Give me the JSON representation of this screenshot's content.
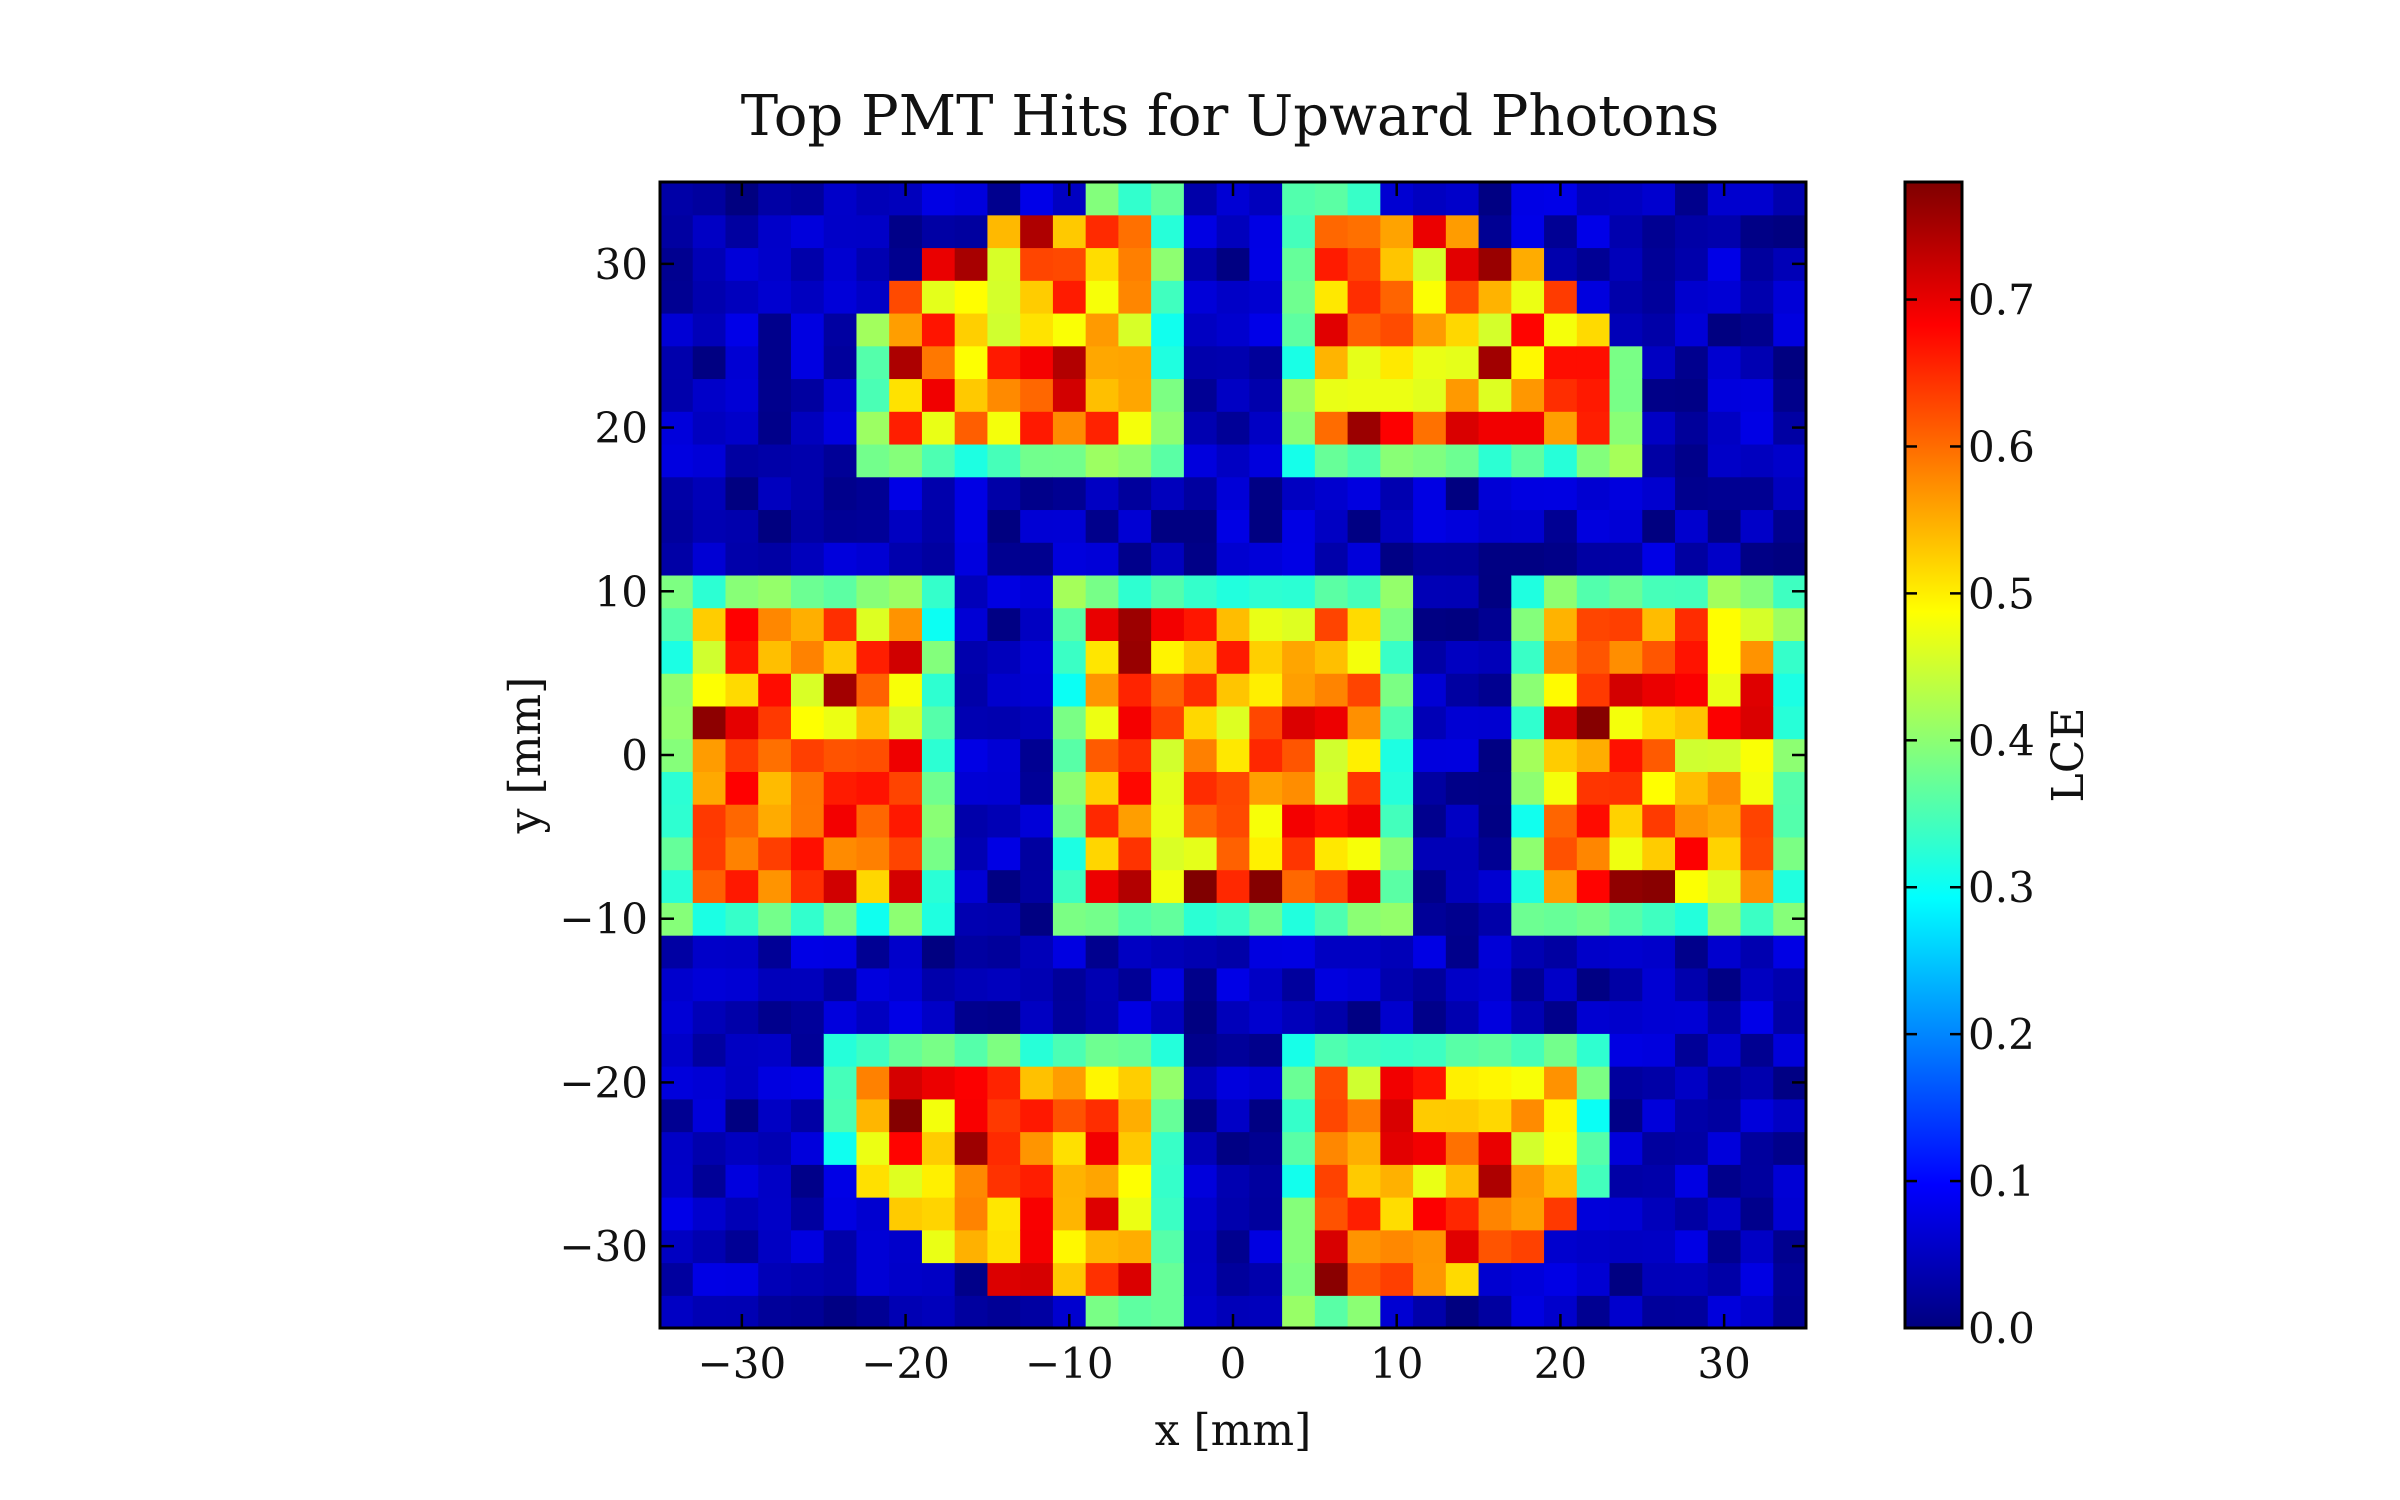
{
  "chart_data": {
    "type": "heatmap",
    "title": "Top PMT Hits for Upward Photons",
    "xlabel": "x [mm]",
    "ylabel": "y [mm]",
    "xlim": [
      -35,
      35
    ],
    "ylim": [
      -35,
      35
    ],
    "xticks": [
      -30,
      -20,
      -10,
      0,
      10,
      20,
      30
    ],
    "yticks": [
      -30,
      -20,
      -10,
      0,
      10,
      20,
      30
    ],
    "bins": 35,
    "bin_width_mm": 2,
    "colorbar": {
      "label": "LCE",
      "range": [
        0.0,
        0.78
      ],
      "ticks": [
        0.0,
        0.1,
        0.2,
        0.3,
        0.4,
        0.5,
        0.6,
        0.7
      ],
      "colormap": "jet"
    },
    "pmt_regions": [
      {
        "name": "top-left",
        "x": [
          -23,
          -3
        ],
        "y": [
          17,
          35
        ],
        "clip": "circle"
      },
      {
        "name": "top-right",
        "x": [
          3,
          25
        ],
        "y": [
          17,
          35
        ],
        "clip": "circle"
      },
      {
        "name": "middle-left",
        "x": [
          -35,
          -17
        ],
        "y": [
          -11,
          11
        ]
      },
      {
        "name": "middle-center",
        "x": [
          -11,
          11
        ],
        "y": [
          -11,
          11
        ]
      },
      {
        "name": "middle-right",
        "x": [
          17,
          35
        ],
        "y": [
          -11,
          11
        ]
      },
      {
        "name": "bottom-left",
        "x": [
          -25,
          -3
        ],
        "y": [
          -35,
          -17
        ],
        "clip": "circle"
      },
      {
        "name": "bottom-right",
        "x": [
          3,
          23
        ],
        "y": [
          -35,
          -17
        ],
        "clip": "circle"
      }
    ],
    "inner_lce_range": [
      0.45,
      0.72
    ],
    "edge_lce_range": [
      0.3,
      0.42
    ],
    "background_lce_range": [
      0.0,
      0.08
    ],
    "peak_lce": 0.78
  }
}
